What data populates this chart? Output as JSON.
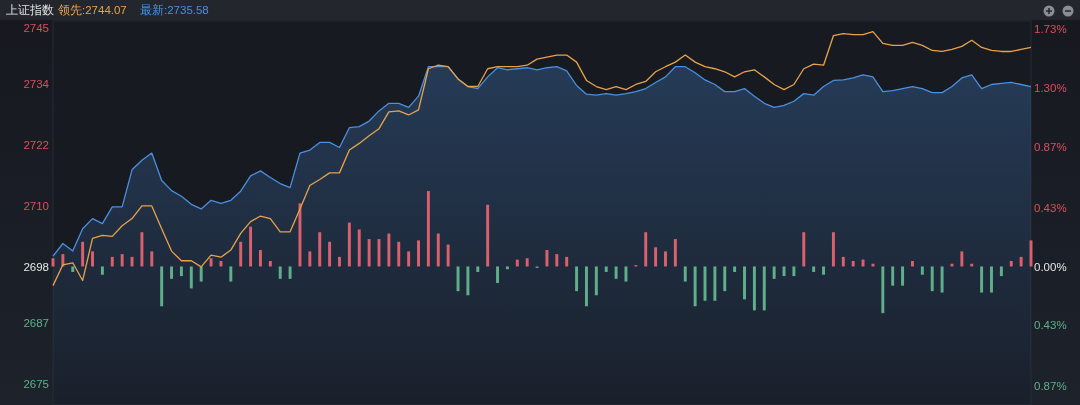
{
  "chart_data": {
    "type": "line",
    "title": "上证指数",
    "categories": [
      null,
      null,
      null,
      null,
      null,
      null,
      null,
      null,
      null,
      null,
      null,
      null,
      null,
      null,
      null,
      null,
      null,
      null,
      null,
      null,
      null,
      null,
      null,
      null,
      null,
      null,
      null,
      null,
      null,
      null,
      null,
      null,
      null,
      null,
      null,
      null,
      null,
      null,
      null,
      null,
      null,
      null,
      null,
      null,
      null,
      null,
      null,
      null,
      null,
      null,
      null,
      null,
      null,
      null,
      null,
      null,
      null,
      null,
      null,
      null,
      null,
      null,
      null,
      null,
      null,
      null,
      null,
      null,
      null,
      null,
      null,
      null,
      null,
      null,
      null,
      null,
      null,
      null,
      null,
      null,
      null,
      null,
      null,
      null,
      null,
      null,
      null,
      null,
      null,
      null,
      null,
      null,
      null,
      null,
      null,
      null,
      null,
      null,
      null,
      null
    ],
    "series": [
      {
        "name": "领先:2744.07",
        "color": "#e8a24a",
        "values": [
          2694.3,
          2698.4,
          2698.8,
          2695.3,
          2703.6,
          2704.2,
          2704.0,
          2706.1,
          2707.5,
          2710.0,
          2710.0,
          2705.5,
          2701.1,
          2699.2,
          2699.2,
          2698.0,
          2700.3,
          2699.9,
          2701.3,
          2704.6,
          2706.9,
          2708.0,
          2707.5,
          2704.9,
          2704.9,
          2709.4,
          2714.0,
          2715.2,
          2716.5,
          2716.5,
          2721.0,
          2722.3,
          2723.8,
          2725.2,
          2728.5,
          2728.7,
          2727.9,
          2728.9,
          2737.0,
          2737.7,
          2737.4,
          2735.0,
          2733.5,
          2733.5,
          2737.0,
          2737.4,
          2737.4,
          2737.4,
          2737.7,
          2738.9,
          2739.3,
          2739.7,
          2739.7,
          2738.3,
          2734.7,
          2733.5,
          2732.9,
          2733.5,
          2732.9,
          2733.9,
          2734.5,
          2736.4,
          2737.4,
          2738.3,
          2739.7,
          2738.3,
          2737.4,
          2737.0,
          2736.4,
          2735.4,
          2736.4,
          2736.8,
          2735.4,
          2733.9,
          2732.9,
          2733.9,
          2737.0,
          2737.9,
          2737.7,
          2743.5,
          2743.9,
          2743.7,
          2743.7,
          2744.3,
          2742.0,
          2741.6,
          2741.6,
          2742.2,
          2741.6,
          2740.6,
          2740.4,
          2740.8,
          2741.4,
          2742.6,
          2741.2,
          2740.6,
          2740.4,
          2740.4,
          2740.8,
          2741.2
        ]
      },
      {
        "type": "area",
        "name": "最新:2735.58",
        "color": "#4a8fe0",
        "values": [
          2700.1,
          2702.6,
          2701.1,
          2705.5,
          2707.5,
          2706.5,
          2709.8,
          2709.8,
          2717.1,
          2719.0,
          2720.4,
          2715.0,
          2713.0,
          2711.9,
          2710.3,
          2709.4,
          2711.1,
          2710.5,
          2711.1,
          2712.9,
          2715.9,
          2716.9,
          2715.6,
          2714.4,
          2713.6,
          2720.4,
          2721.0,
          2722.5,
          2722.5,
          2721.5,
          2725.4,
          2725.6,
          2726.7,
          2728.7,
          2730.2,
          2730.2,
          2729.4,
          2731.6,
          2737.4,
          2737.4,
          2737.4,
          2735.0,
          2733.5,
          2733.1,
          2735.4,
          2737.2,
          2736.8,
          2737.0,
          2737.2,
          2736.8,
          2737.2,
          2737.4,
          2736.6,
          2733.7,
          2732.0,
          2731.8,
          2732.1,
          2731.8,
          2732.1,
          2732.5,
          2733.1,
          2734.3,
          2735.4,
          2737.4,
          2737.4,
          2736.2,
          2734.8,
          2733.9,
          2732.5,
          2732.5,
          2733.1,
          2731.6,
          2730.2,
          2729.4,
          2729.8,
          2730.6,
          2732.1,
          2731.8,
          2733.5,
          2734.7,
          2734.8,
          2735.2,
          2735.8,
          2735.4,
          2732.5,
          2732.7,
          2733.1,
          2733.5,
          2733.1,
          2732.3,
          2732.3,
          2733.5,
          2735.2,
          2735.8,
          2733.1,
          2733.9,
          2734.1,
          2734.3,
          2733.9,
          2733.5
        ]
      },
      {
        "type": "bar",
        "axis": "y2",
        "color": "#d9606c",
        "values": [
          0.06,
          0.09,
          null,
          0.18,
          0.11,
          null,
          0.07,
          0.09,
          0.07,
          0.25,
          0.11,
          null,
          null,
          null,
          null,
          null,
          0.06,
          0.04,
          null,
          0.18,
          0.29,
          0.12,
          0.04,
          null,
          null,
          0.46,
          0.11,
          0.25,
          0.18,
          0.07,
          0.32,
          0.27,
          0.2,
          0.2,
          0.24,
          0.18,
          0.11,
          0.19,
          0.55,
          0.24,
          0.16,
          null,
          null,
          null,
          0.45,
          null,
          null,
          0.05,
          0.06,
          null,
          0.12,
          0.09,
          0.07,
          null,
          null,
          null,
          null,
          null,
          null,
          0.01,
          0.25,
          0.14,
          0.11,
          0.2,
          null,
          null,
          null,
          null,
          null,
          null,
          null,
          null,
          null,
          null,
          null,
          null,
          0.25,
          null,
          null,
          0.25,
          0.07,
          0.04,
          0.05,
          0.02,
          null,
          null,
          null,
          0.04,
          null,
          null,
          null,
          0.02,
          0.11,
          0.02,
          null,
          null,
          null,
          0.04,
          0.07,
          0.19
        ]
      },
      {
        "type": "bar",
        "axis": "y2",
        "color": "#5fb08a",
        "values": [
          null,
          null,
          -0.04,
          null,
          null,
          -0.06,
          null,
          null,
          null,
          null,
          null,
          -0.29,
          -0.09,
          -0.07,
          -0.16,
          -0.11,
          null,
          null,
          -0.11,
          null,
          null,
          null,
          null,
          -0.09,
          -0.09,
          null,
          null,
          null,
          null,
          null,
          null,
          null,
          null,
          null,
          null,
          null,
          null,
          null,
          null,
          null,
          null,
          -0.18,
          -0.21,
          -0.04,
          null,
          -0.12,
          -0.02,
          null,
          null,
          -0.01,
          null,
          null,
          null,
          -0.18,
          -0.29,
          -0.21,
          -0.04,
          -0.09,
          -0.11,
          null,
          null,
          null,
          null,
          null,
          -0.11,
          -0.29,
          -0.25,
          -0.25,
          -0.18,
          -0.04,
          -0.24,
          -0.32,
          -0.32,
          -0.09,
          -0.07,
          -0.07,
          null,
          -0.04,
          -0.06,
          null,
          null,
          null,
          null,
          null,
          -0.34,
          -0.14,
          -0.14,
          null,
          -0.06,
          -0.18,
          -0.19,
          null,
          null,
          null,
          -0.19,
          -0.19,
          -0.07,
          null,
          null,
          null
        ]
      }
    ],
    "ylim": [
      2670.8,
      2746.4
    ],
    "yticks": [
      2745,
      2734,
      2722,
      2710,
      2698,
      2687,
      2675
    ],
    "y2lim": [
      -1.01,
      1.79
    ],
    "y2ticks": [
      {
        "value": 1.73,
        "label": "1.73%"
      },
      {
        "value": 1.3,
        "label": "1.30%"
      },
      {
        "value": 0.87,
        "label": "0.87%"
      },
      {
        "value": 0.43,
        "label": "0.43%"
      },
      {
        "value": 0,
        "label": "0.00%"
      },
      {
        "value": -0.43,
        "label": "0.43%"
      },
      {
        "value": -0.87,
        "label": "0.87%"
      }
    ],
    "legend": "top left",
    "grid": false,
    "marker": "none",
    "line_style": "solid"
  }
}
